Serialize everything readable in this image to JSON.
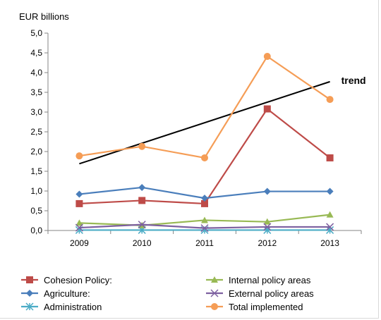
{
  "chart_data": {
    "type": "line",
    "ylabel": "EUR billions",
    "ylim": [
      0,
      5
    ],
    "yticks": [
      "0,0",
      "0,5",
      "1,0",
      "1,5",
      "2,0",
      "2,5",
      "3,0",
      "3,5",
      "4,0",
      "4,5",
      "5,0"
    ],
    "categories": [
      "2009",
      "2010",
      "2011",
      "2012",
      "2013"
    ],
    "grid": false,
    "legend_position": "bottom",
    "series": [
      {
        "name": "Cohesion Policy:",
        "color": "#be4b48",
        "marker": "square",
        "values": [
          0.68,
          0.76,
          0.68,
          3.08,
          1.84
        ]
      },
      {
        "name": "Agriculture:",
        "color": "#4a7ebb",
        "marker": "diamond",
        "values": [
          0.92,
          1.09,
          0.82,
          0.99,
          0.99
        ]
      },
      {
        "name": "Administration",
        "color": "#4bacc6",
        "marker": "asterisk",
        "values": [
          0.01,
          0.01,
          0.01,
          0.01,
          0.01
        ]
      },
      {
        "name": "Internal policy areas",
        "color": "#98b954",
        "marker": "triangle",
        "values": [
          0.19,
          0.13,
          0.26,
          0.22,
          0.4
        ]
      },
      {
        "name": "External policy areas",
        "color": "#7d60a0",
        "marker": "x",
        "values": [
          0.07,
          0.15,
          0.06,
          0.09,
          0.09
        ]
      },
      {
        "name": "Total implemented",
        "color": "#f59d56",
        "marker": "circle",
        "values": [
          1.89,
          2.13,
          1.84,
          4.41,
          3.32
        ]
      }
    ],
    "trend": {
      "label": "trend",
      "color": "#000000",
      "start": 1.69,
      "end": 3.77
    }
  }
}
